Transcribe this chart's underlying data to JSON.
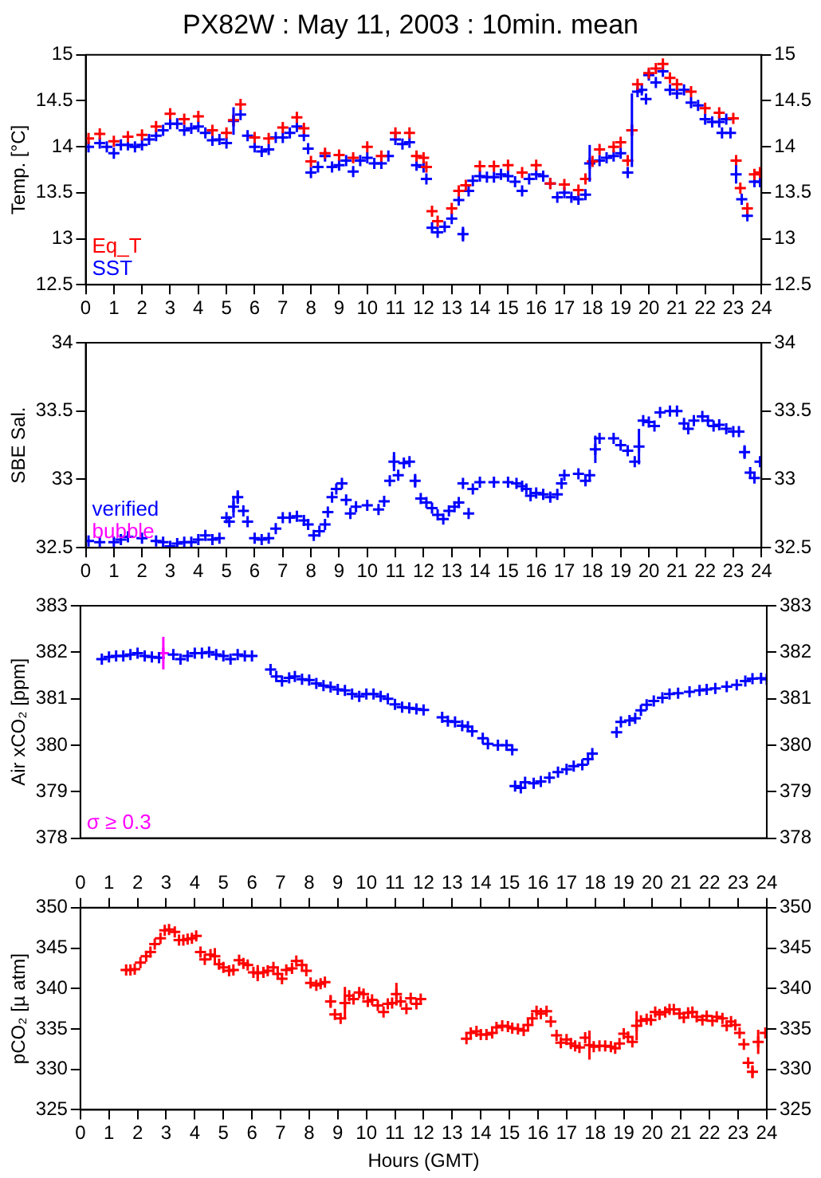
{
  "chart_data": [
    {
      "type": "scatter",
      "title": "PX82W : May 11, 2003 : 10min. mean",
      "ylabel": "Temp. [°C]",
      "xlim": [
        0,
        24
      ],
      "xticks": [
        0,
        1,
        2,
        3,
        4,
        5,
        6,
        7,
        8,
        9,
        10,
        11,
        12,
        13,
        14,
        15,
        16,
        17,
        18,
        19,
        20,
        21,
        22,
        23,
        24
      ],
      "ylim": [
        12.5,
        15
      ],
      "yticks": [
        12.5,
        13,
        13.5,
        14,
        14.5,
        15
      ],
      "y2lim": [
        12.5,
        15
      ],
      "y2ticks": [
        12.5,
        13,
        13.5,
        14,
        14.5,
        15
      ],
      "marker": "cross",
      "grid": false,
      "legend": "bottom left",
      "tick_labels": "xy",
      "series": [
        {
          "name": "Eq_T",
          "color": "#ff0000",
          "x": [
            0.1,
            0.5,
            1.0,
            1.5,
            2.0,
            2.5,
            3.0,
            3.5,
            4.0,
            4.5,
            5.0,
            5.25,
            5.5,
            6.0,
            6.5,
            7.0,
            7.5,
            7.75,
            8.0,
            8.5,
            9.0,
            9.5,
            10.0,
            10.5,
            11.0,
            11.5,
            11.75,
            12.0,
            12.1,
            12.3,
            12.5,
            13.0,
            13.25,
            13.5,
            14.0,
            14.5,
            15.0,
            15.5,
            16.0,
            16.5,
            17.0,
            17.5,
            17.75,
            18.0,
            18.25,
            18.75,
            19.0,
            19.25,
            19.4,
            19.6,
            20.0,
            20.25,
            20.5,
            20.75,
            21.0,
            21.5,
            22.0,
            22.5,
            23.0,
            23.1,
            23.25,
            23.5,
            23.75,
            23.95
          ],
          "values": [
            14.09,
            14.14,
            14.06,
            14.11,
            14.13,
            14.22,
            14.36,
            14.3,
            14.33,
            14.18,
            14.15,
            14.29,
            14.46,
            14.1,
            14.09,
            14.21,
            14.32,
            14.2,
            13.84,
            13.93,
            13.91,
            13.88,
            14.0,
            13.9,
            14.15,
            14.15,
            13.9,
            13.88,
            13.78,
            13.3,
            13.19,
            13.33,
            13.52,
            13.58,
            13.79,
            13.79,
            13.8,
            13.72,
            13.8,
            13.6,
            13.59,
            13.53,
            13.65,
            13.84,
            13.97,
            14.0,
            14.05,
            13.85,
            14.18,
            14.68,
            14.8,
            14.85,
            14.9,
            14.75,
            14.68,
            14.6,
            14.42,
            14.37,
            14.31,
            13.85,
            13.55,
            13.33,
            13.7,
            13.72
          ]
        },
        {
          "name": "SST",
          "color": "#0000ff",
          "x": [
            0.1,
            0.5,
            0.75,
            1.0,
            1.25,
            1.5,
            1.75,
            2.0,
            2.25,
            2.5,
            2.75,
            3.0,
            3.25,
            3.5,
            3.75,
            4.0,
            4.25,
            4.5,
            4.75,
            5.0,
            5.25,
            5.5,
            5.75,
            6.0,
            6.25,
            6.5,
            6.75,
            7.0,
            7.25,
            7.5,
            7.75,
            7.9,
            8.0,
            8.25,
            8.5,
            8.75,
            9.0,
            9.25,
            9.5,
            9.75,
            10.0,
            10.25,
            10.5,
            10.75,
            11.0,
            11.25,
            11.5,
            11.75,
            12.0,
            12.1,
            12.3,
            12.5,
            12.75,
            13.0,
            13.25,
            13.4,
            13.6,
            13.75,
            14.0,
            14.25,
            14.5,
            14.75,
            15.0,
            15.25,
            15.5,
            15.75,
            16.0,
            16.25,
            16.5,
            16.75,
            17.0,
            17.25,
            17.5,
            17.75,
            17.9,
            18.25,
            18.5,
            18.75,
            19.0,
            19.25,
            19.4,
            19.6,
            19.75,
            19.9,
            20.0,
            20.25,
            20.5,
            20.75,
            21.0,
            21.25,
            21.5,
            21.75,
            22.0,
            22.25,
            22.5,
            22.6,
            22.75,
            22.9,
            23.1,
            23.3,
            23.5,
            23.75,
            23.95
          ],
          "values": [
            14.0,
            14.04,
            14.0,
            13.93,
            14.02,
            14.02,
            14.0,
            14.02,
            14.08,
            14.12,
            14.18,
            14.25,
            14.25,
            14.18,
            14.2,
            14.22,
            14.15,
            14.07,
            14.08,
            14.04,
            14.28,
            14.35,
            14.12,
            14.0,
            13.95,
            13.97,
            14.1,
            14.1,
            14.15,
            14.22,
            14.12,
            13.98,
            13.72,
            13.78,
            13.9,
            13.78,
            13.8,
            13.85,
            13.73,
            13.85,
            13.88,
            13.82,
            13.82,
            13.9,
            14.08,
            14.03,
            14.05,
            13.8,
            13.78,
            13.65,
            13.12,
            13.07,
            13.13,
            13.22,
            13.42,
            13.05,
            13.52,
            13.63,
            13.68,
            13.67,
            13.67,
            13.7,
            13.68,
            13.62,
            13.52,
            13.65,
            13.7,
            13.68,
            13.6,
            13.45,
            13.5,
            13.45,
            13.43,
            13.48,
            13.82,
            13.85,
            13.88,
            13.9,
            13.93,
            13.72,
            14.18,
            14.6,
            14.62,
            14.52,
            14.78,
            14.7,
            14.82,
            14.62,
            14.58,
            14.62,
            14.48,
            14.45,
            14.3,
            14.27,
            14.27,
            14.15,
            14.3,
            14.15,
            13.7,
            13.43,
            13.25,
            13.62,
            13.62
          ],
          "errors": [
            null,
            null,
            null,
            null,
            null,
            null,
            null,
            null,
            null,
            null,
            null,
            null,
            null,
            null,
            null,
            null,
            null,
            null,
            null,
            null,
            0.15,
            null,
            null,
            null,
            null,
            null,
            null,
            null,
            null,
            null,
            null,
            null,
            null,
            null,
            null,
            null,
            null,
            null,
            null,
            null,
            null,
            null,
            null,
            null,
            null,
            null,
            null,
            null,
            null,
            null,
            null,
            null,
            null,
            null,
            null,
            0.08,
            null,
            null,
            null,
            null,
            null,
            null,
            null,
            null,
            null,
            null,
            null,
            null,
            null,
            null,
            null,
            null,
            null,
            null,
            0.2,
            null,
            null,
            null,
            null,
            null,
            0.4,
            null,
            null,
            null,
            null,
            null,
            null,
            null,
            null,
            null,
            null,
            null,
            null,
            null,
            null,
            null,
            null,
            null,
            0.1,
            null,
            null,
            null,
            null
          ]
        }
      ]
    },
    {
      "type": "scatter",
      "ylabel": "SBE Sal.",
      "xlim": [
        0,
        24
      ],
      "xticks": [
        0,
        1,
        2,
        3,
        4,
        5,
        6,
        7,
        8,
        9,
        10,
        11,
        12,
        13,
        14,
        15,
        16,
        17,
        18,
        19,
        20,
        21,
        22,
        23,
        24
      ],
      "ylim": [
        32.5,
        34
      ],
      "yticks": [
        32.5,
        33,
        33.5,
        34
      ],
      "y2lim": [
        32.5,
        34
      ],
      "y2ticks": [
        32.5,
        33,
        33.5,
        34
      ],
      "marker": "cross",
      "grid": false,
      "legend": "bottom left",
      "tick_labels": "xy",
      "series": [
        {
          "name": "verified",
          "color": "#0000ff",
          "x": [
            0.1,
            0.5,
            1.0,
            1.25,
            1.5,
            2.0,
            2.5,
            2.75,
            3.0,
            3.25,
            3.5,
            3.75,
            4.0,
            4.25,
            4.5,
            4.75,
            5.0,
            5.1,
            5.25,
            5.4,
            5.6,
            5.75,
            6.0,
            6.25,
            6.5,
            6.75,
            7.0,
            7.25,
            7.5,
            7.75,
            7.9,
            8.1,
            8.3,
            8.5,
            8.6,
            8.75,
            8.9,
            9.1,
            9.25,
            9.4,
            9.6,
            10.0,
            10.4,
            10.6,
            10.8,
            10.95,
            11.1,
            11.3,
            11.5,
            11.7,
            11.9,
            12.1,
            12.3,
            12.5,
            12.7,
            12.9,
            13.1,
            13.25,
            13.4,
            13.6,
            13.75,
            14.0,
            14.5,
            15.0,
            15.3,
            15.5,
            15.65,
            15.8,
            16.0,
            16.25,
            16.5,
            16.75,
            16.9,
            17.0,
            17.5,
            17.75,
            17.9,
            18.1,
            18.25,
            18.75,
            19.0,
            19.25,
            19.5,
            19.65,
            19.8,
            20.0,
            20.2,
            20.4,
            20.75,
            21.0,
            21.25,
            21.4,
            21.6,
            21.9,
            22.1,
            22.3,
            22.5,
            22.75,
            23.0,
            23.2,
            23.4,
            23.6,
            23.75,
            23.95
          ],
          "values": [
            32.55,
            32.54,
            32.54,
            32.56,
            32.58,
            32.57,
            32.55,
            32.54,
            32.51,
            32.53,
            32.54,
            32.54,
            32.56,
            32.59,
            32.56,
            32.57,
            32.72,
            32.69,
            32.8,
            32.87,
            32.77,
            32.69,
            32.57,
            32.56,
            32.57,
            32.64,
            32.72,
            32.72,
            32.73,
            32.7,
            32.67,
            32.59,
            32.62,
            32.67,
            32.76,
            32.87,
            32.93,
            32.97,
            32.85,
            32.75,
            32.8,
            32.81,
            32.78,
            32.84,
            32.99,
            33.13,
            33.03,
            33.12,
            33.13,
            32.99,
            32.86,
            32.83,
            32.79,
            32.74,
            32.71,
            32.77,
            32.8,
            32.83,
            32.97,
            32.75,
            32.93,
            32.98,
            32.98,
            32.98,
            32.97,
            32.95,
            32.93,
            32.88,
            32.9,
            32.89,
            32.87,
            32.89,
            32.97,
            33.03,
            33.04,
            32.99,
            33.03,
            33.22,
            33.3,
            33.3,
            33.25,
            33.21,
            33.13,
            33.24,
            33.43,
            33.42,
            33.39,
            33.49,
            33.5,
            33.5,
            33.41,
            33.37,
            33.43,
            33.46,
            33.43,
            33.39,
            33.4,
            33.37,
            33.35,
            33.35,
            33.2,
            33.05,
            33.01,
            33.13
          ],
          "errors": [
            null,
            null,
            null,
            null,
            null,
            null,
            null,
            null,
            null,
            null,
            null,
            null,
            null,
            null,
            null,
            null,
            null,
            null,
            0.08,
            0.05,
            null,
            null,
            null,
            null,
            null,
            null,
            null,
            null,
            null,
            null,
            null,
            null,
            null,
            null,
            null,
            null,
            null,
            null,
            null,
            null,
            null,
            null,
            null,
            null,
            null,
            0.07,
            null,
            null,
            null,
            0.05,
            null,
            null,
            null,
            null,
            null,
            null,
            null,
            null,
            null,
            null,
            null,
            null,
            null,
            null,
            null,
            null,
            null,
            null,
            null,
            null,
            null,
            null,
            null,
            null,
            null,
            null,
            null,
            0.1,
            null,
            null,
            null,
            null,
            null,
            0.13,
            null,
            null,
            null,
            null,
            null,
            null,
            null,
            null,
            null,
            null,
            null,
            null,
            null,
            null,
            null,
            null,
            0.05,
            null,
            null,
            null
          ]
        },
        {
          "name": "bubble",
          "color": "#ff00ff"
        }
      ]
    },
    {
      "type": "scatter",
      "ylabel": "Air xCO₂ [ppm]",
      "xlim": [
        0,
        24
      ],
      "ylim": [
        378,
        383
      ],
      "yticks": [
        378,
        379,
        380,
        381,
        382,
        383
      ],
      "y2lim": [
        378,
        383
      ],
      "y2ticks": [
        378,
        379,
        380,
        381,
        382,
        383
      ],
      "marker": "cross",
      "grid": false,
      "legend": "bottom left",
      "tick_labels": "y",
      "series": [
        {
          "color": "#0000ff",
          "x": [
            0.75,
            1.0,
            1.25,
            1.5,
            1.75,
            2.0,
            2.25,
            2.5,
            2.75,
            3.25,
            3.5,
            3.75,
            4.0,
            4.25,
            4.5,
            4.75,
            5.0,
            5.25,
            5.5,
            5.75,
            6.0,
            6.65,
            6.85,
            7.05,
            7.3,
            7.5,
            7.75,
            8.0,
            8.25,
            8.5,
            8.75,
            9.0,
            9.25,
            9.5,
            9.75,
            10.0,
            10.25,
            10.5,
            10.75,
            11.0,
            11.25,
            11.5,
            11.75,
            12.0,
            12.65,
            12.85,
            13.1,
            13.35,
            13.55,
            13.7,
            14.07,
            14.25,
            14.6,
            14.9,
            15.1,
            15.2,
            15.4,
            15.55,
            15.85,
            16.1,
            16.4,
            16.7,
            17.0,
            17.25,
            17.55,
            17.75,
            17.9,
            18.75,
            18.9,
            19.2,
            19.4,
            19.6,
            19.8,
            20.05,
            20.35,
            20.6,
            20.9,
            21.3,
            21.65,
            21.9,
            22.2,
            22.6,
            22.95,
            23.25,
            23.5,
            23.8,
            24
          ],
          "values": [
            381.85,
            381.9,
            381.92,
            381.92,
            381.95,
            381.98,
            381.92,
            381.9,
            381.88,
            381.95,
            381.85,
            381.92,
            381.98,
            381.98,
            382.0,
            381.95,
            381.92,
            381.85,
            381.95,
            381.92,
            381.92,
            381.63,
            381.48,
            381.38,
            381.45,
            381.48,
            381.42,
            381.4,
            381.33,
            381.28,
            381.25,
            381.2,
            381.18,
            381.1,
            381.05,
            381.1,
            381.1,
            381.05,
            381.0,
            380.88,
            380.82,
            380.8,
            380.78,
            380.76,
            380.6,
            380.52,
            380.5,
            380.42,
            380.4,
            380.3,
            380.15,
            380.03,
            380.0,
            380.0,
            379.9,
            379.12,
            379.08,
            379.2,
            379.18,
            379.22,
            379.3,
            379.42,
            379.48,
            379.55,
            379.58,
            379.7,
            379.82,
            380.28,
            380.5,
            380.53,
            380.58,
            380.75,
            380.87,
            380.95,
            381.02,
            381.1,
            381.12,
            381.15,
            381.18,
            381.2,
            381.22,
            381.26,
            381.3,
            381.38,
            381.43,
            381.44,
            381.42
          ]
        },
        {
          "name": "σ ≥ 0.3",
          "color": "#ff00ff",
          "x": [
            2.9
          ],
          "values": [
            381.98
          ],
          "errors": [
            0.35
          ]
        }
      ]
    },
    {
      "type": "scatter",
      "ylabel": "pCO₂ [µ atm]",
      "xlabel": "Hours (GMT)",
      "xlim": [
        0,
        24
      ],
      "xticks": [
        0,
        1,
        2,
        3,
        4,
        5,
        6,
        7,
        8,
        9,
        10,
        11,
        12,
        13,
        14,
        15,
        16,
        17,
        18,
        19,
        20,
        21,
        22,
        23,
        24
      ],
      "x2lim": [
        0,
        24
      ],
      "x2ticks": [
        0,
        1,
        2,
        3,
        4,
        5,
        6,
        7,
        8,
        9,
        10,
        11,
        12,
        13,
        14,
        15,
        16,
        17,
        18,
        19,
        20,
        21,
        22,
        23,
        24
      ],
      "ylim": [
        325,
        350
      ],
      "yticks": [
        325,
        330,
        335,
        340,
        345,
        350
      ],
      "y2lim": [
        325,
        350
      ],
      "y2ticks": [
        325,
        330,
        335,
        340,
        345,
        350
      ],
      "marker": "cross",
      "grid": false,
      "series": [
        {
          "color": "#ff0000",
          "x": [
            1.6,
            1.75,
            1.9,
            2.1,
            2.3,
            2.45,
            2.6,
            2.8,
            2.95,
            3.1,
            3.3,
            3.45,
            3.6,
            3.75,
            3.9,
            4.05,
            4.2,
            4.35,
            4.55,
            4.7,
            4.85,
            5.0,
            5.2,
            5.35,
            5.55,
            5.7,
            5.85,
            6.05,
            6.2,
            6.4,
            6.55,
            6.75,
            6.9,
            7.05,
            7.2,
            7.4,
            7.55,
            7.75,
            7.9,
            8.05,
            8.25,
            8.4,
            8.55,
            8.75,
            8.9,
            9.1,
            9.25,
            9.4,
            9.55,
            9.75,
            9.9,
            10.05,
            10.2,
            10.4,
            10.6,
            10.75,
            10.9,
            11.05,
            11.2,
            11.4,
            11.55,
            11.75,
            11.9,
            13.5,
            13.65,
            13.85,
            14.0,
            14.2,
            14.4,
            14.55,
            14.75,
            14.95,
            15.1,
            15.3,
            15.5,
            15.65,
            15.8,
            15.95,
            16.1,
            16.3,
            16.45,
            16.65,
            16.8,
            17.0,
            17.15,
            17.3,
            17.45,
            17.65,
            17.8,
            17.95,
            18.15,
            18.35,
            18.55,
            18.7,
            18.85,
            19.0,
            19.15,
            19.3,
            19.45,
            19.6,
            19.8,
            19.95,
            20.1,
            20.25,
            20.45,
            20.6,
            20.75,
            20.95,
            21.1,
            21.25,
            21.4,
            21.55,
            21.75,
            21.9,
            22.1,
            22.25,
            22.45,
            22.6,
            22.75,
            22.9,
            23.05,
            23.2,
            23.35,
            23.5,
            23.7,
            23.95
          ],
          "values": [
            342.3,
            342.3,
            342.4,
            343.2,
            344.0,
            344.5,
            345.5,
            346.2,
            347.2,
            347.3,
            347.0,
            346.0,
            346.0,
            346.1,
            346.2,
            346.5,
            344.5,
            343.6,
            344.2,
            344.0,
            343.0,
            342.6,
            342.2,
            342.3,
            343.5,
            343.1,
            342.9,
            342.0,
            341.9,
            342.0,
            342.2,
            342.6,
            341.8,
            341.2,
            342.3,
            342.5,
            343.4,
            342.9,
            342.2,
            340.7,
            340.4,
            340.6,
            340.8,
            338.4,
            336.8,
            336.3,
            338.2,
            339.1,
            338.7,
            339.5,
            339.3,
            338.4,
            338.6,
            337.9,
            337.1,
            338.1,
            338.2,
            339.3,
            338.4,
            337.5,
            338.8,
            338.1,
            338.7,
            333.8,
            334.5,
            334.7,
            334.3,
            334.3,
            334.5,
            335.2,
            335.4,
            335.3,
            335.1,
            335.0,
            334.8,
            335.5,
            336.3,
            337.2,
            336.9,
            337.2,
            335.9,
            334.2,
            333.3,
            333.7,
            333.2,
            332.9,
            332.7,
            333.9,
            333.0,
            332.8,
            332.9,
            332.9,
            332.8,
            332.6,
            333.2,
            334.4,
            334.0,
            333.4,
            335.4,
            336.0,
            336.2,
            336.1,
            337.1,
            336.8,
            337.1,
            337.4,
            337.4,
            336.9,
            336.4,
            337.0,
            337.1,
            336.5,
            336.1,
            336.6,
            336.0,
            336.5,
            336.3,
            335.4,
            335.9,
            335.5,
            334.5,
            333.1,
            330.8,
            329.7,
            333.4,
            334.5
          ],
          "errors": [
            null,
            null,
            null,
            null,
            null,
            null,
            null,
            null,
            null,
            null,
            null,
            null,
            null,
            null,
            null,
            null,
            null,
            null,
            null,
            1.0,
            null,
            null,
            null,
            null,
            null,
            null,
            null,
            null,
            1.0,
            null,
            null,
            null,
            null,
            null,
            null,
            null,
            null,
            null,
            null,
            null,
            null,
            null,
            null,
            0.8,
            null,
            null,
            2.0,
            null,
            null,
            null,
            null,
            null,
            null,
            null,
            null,
            null,
            null,
            1.4,
            null,
            null,
            null,
            null,
            null,
            null,
            null,
            null,
            null,
            null,
            null,
            null,
            null,
            null,
            null,
            null,
            null,
            null,
            null,
            null,
            null,
            null,
            null,
            null,
            null,
            null,
            null,
            null,
            null,
            null,
            1.8,
            null,
            null,
            null,
            null,
            null,
            null,
            null,
            null,
            null,
            1.8,
            null,
            null,
            null,
            null,
            null,
            null,
            null,
            null,
            null,
            null,
            null,
            null,
            null,
            null,
            null,
            null,
            null,
            null,
            null,
            null,
            null,
            null,
            null,
            null,
            0.8,
            1.5,
            null
          ]
        }
      ]
    }
  ]
}
